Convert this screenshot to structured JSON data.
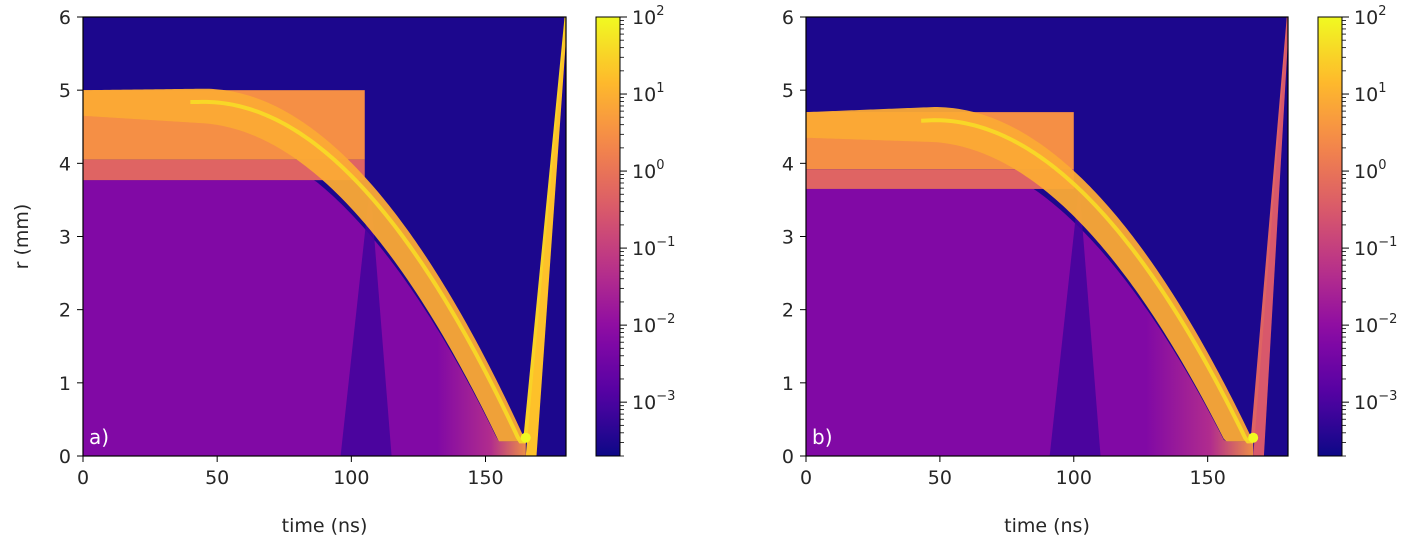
{
  "chart_data": [
    {
      "type": "heatmap",
      "panel_label": "a)",
      "xlabel": "time (ns)",
      "ylabel": "r (mm)",
      "xlim": [
        0,
        180
      ],
      "ylim": [
        0,
        6
      ],
      "x_ticks": [
        0,
        50,
        100,
        150
      ],
      "y_ticks": [
        0,
        1,
        2,
        3,
        4,
        5,
        6
      ],
      "colormap": "plasma",
      "color_scale": "log",
      "clim": [
        0.0002,
        100
      ],
      "colorbar_ticks": [
        {
          "base": "10",
          "exp": "2",
          "value": 100
        },
        {
          "base": "10",
          "exp": "1",
          "value": 10
        },
        {
          "base": "10",
          "exp": "0",
          "value": 1
        },
        {
          "base": "10",
          "exp": "−1",
          "value": 0.1
        },
        {
          "base": "10",
          "exp": "−2",
          "value": 0.01
        },
        {
          "base": "10",
          "exp": "−3",
          "value": 0.001
        }
      ],
      "regions": {
        "background_value": 0.0003,
        "core_value": 0.006,
        "shell_value": 3,
        "liner_value": 0.5,
        "initial_outer_radius": 5.0,
        "liner_outer_radius": 4.05,
        "liner_inner_radius": 3.77,
        "shell_peak_time": 45,
        "shell_peak_radius": 5.02,
        "stagnation_time": 165,
        "stagnation_radius": 0.2,
        "rebound_max_radius": 6.0,
        "rebound_value": 30,
        "shock_reflection_time": 107,
        "shock_reflection_radius": 3.7
      }
    },
    {
      "type": "heatmap",
      "panel_label": "b)",
      "xlabel": "time (ns)",
      "ylabel": "",
      "xlim": [
        0,
        180
      ],
      "ylim": [
        0,
        6
      ],
      "x_ticks": [
        0,
        50,
        100,
        150
      ],
      "y_ticks": [
        0,
        1,
        2,
        3,
        4,
        5,
        6
      ],
      "colormap": "plasma",
      "color_scale": "log",
      "clim": [
        0.0002,
        100
      ],
      "colorbar_ticks": [
        {
          "base": "10",
          "exp": "2",
          "value": 100
        },
        {
          "base": "10",
          "exp": "1",
          "value": 10
        },
        {
          "base": "10",
          "exp": "0",
          "value": 1
        },
        {
          "base": "10",
          "exp": "−1",
          "value": 0.1
        },
        {
          "base": "10",
          "exp": "−2",
          "value": 0.01
        },
        {
          "base": "10",
          "exp": "−3",
          "value": 0.001
        }
      ],
      "regions": {
        "background_value": 0.0003,
        "core_value": 0.006,
        "shell_value": 3,
        "liner_value": 0.5,
        "initial_outer_radius": 4.7,
        "liner_outer_radius": 3.92,
        "liner_inner_radius": 3.65,
        "shell_peak_time": 48,
        "shell_peak_radius": 4.77,
        "stagnation_time": 167,
        "stagnation_radius": 0.2,
        "rebound_max_radius": 6.0,
        "rebound_value": 0.5,
        "shock_reflection_time": 102,
        "shock_reflection_radius": 3.7
      }
    }
  ]
}
